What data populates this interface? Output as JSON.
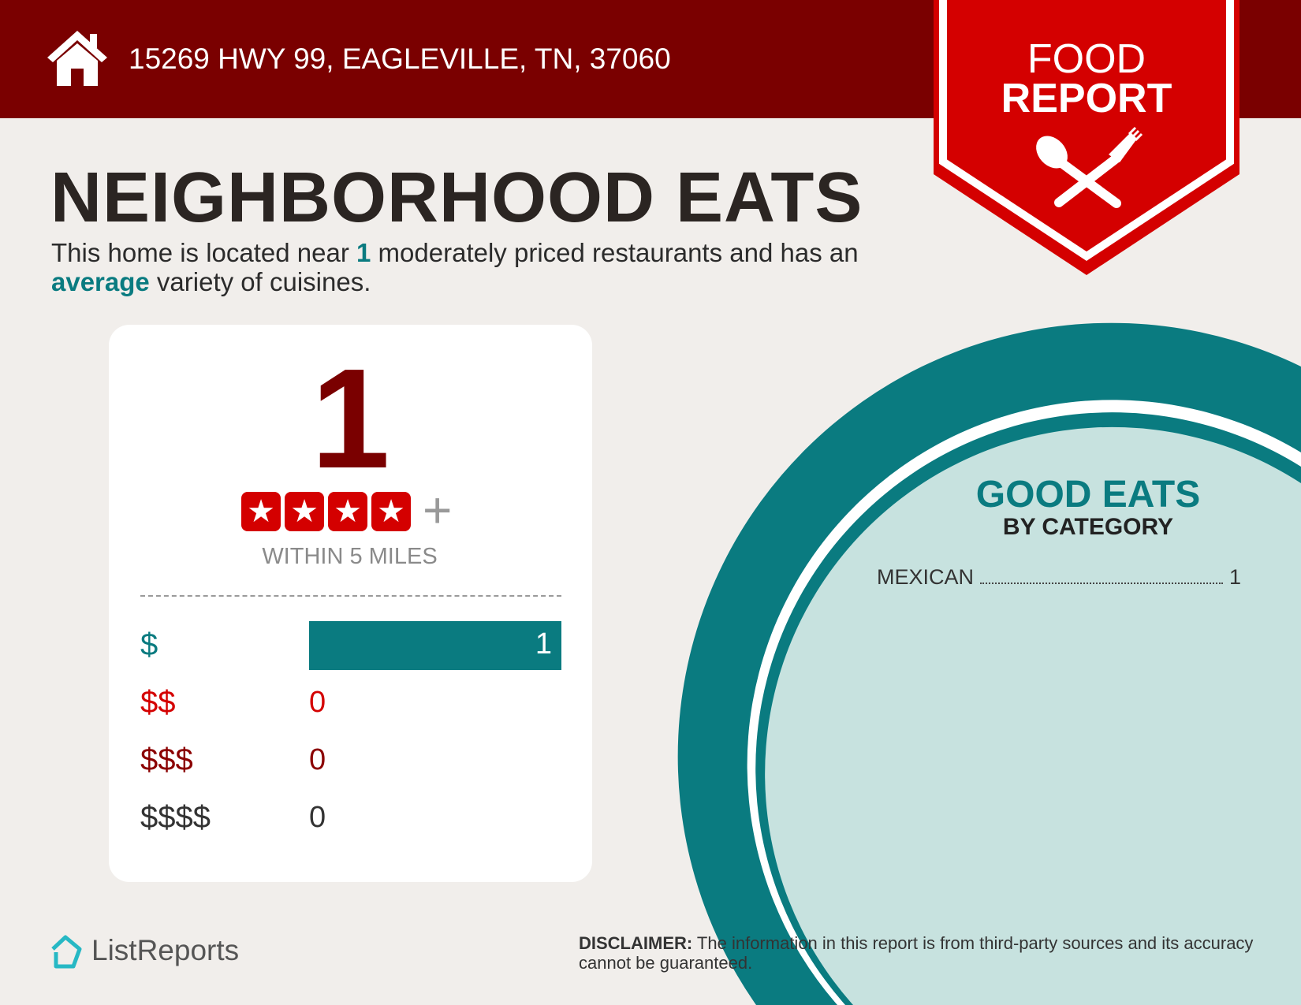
{
  "header": {
    "address": "15269 HWY 99, EAGLEVILLE, TN, 37060",
    "icon": "house-icon"
  },
  "badge": {
    "line1": "FOOD",
    "line2": "REPORT",
    "icon": "spoon-fork-icon"
  },
  "title": "NEIGHBORHOOD EATS",
  "summary": {
    "part1": "This home is located near ",
    "count": "1",
    "part2": " moderately priced restaurants and has an ",
    "variety": "average",
    "part3": " variety of cuisines."
  },
  "card": {
    "total": "1",
    "stars": 4,
    "plus": "+",
    "within": "WITHIN 5 MILES",
    "price_rows": [
      {
        "label": "$",
        "value": "1",
        "color": "#0a7b80"
      },
      {
        "label": "$$",
        "value": "0",
        "color": "#d40000"
      },
      {
        "label": "$$$",
        "value": "0",
        "color": "#8b0000"
      },
      {
        "label": "$$$$",
        "value": "0",
        "color": "#333333"
      }
    ]
  },
  "categories": {
    "title": "GOOD EATS",
    "subtitle": "BY CATEGORY",
    "items": [
      {
        "name": "MEXICAN",
        "count": "1"
      }
    ]
  },
  "footer": {
    "logo": "ListReports",
    "disclaimer_label": "DISCLAIMER:",
    "disclaimer_text": " The information in this report is from third-party sources and its accuracy cannot be guaranteed."
  },
  "colors": {
    "header": "#7a0000",
    "badge": "#d40000",
    "teal": "#0a7b80",
    "light_teal": "#c7e2df"
  }
}
